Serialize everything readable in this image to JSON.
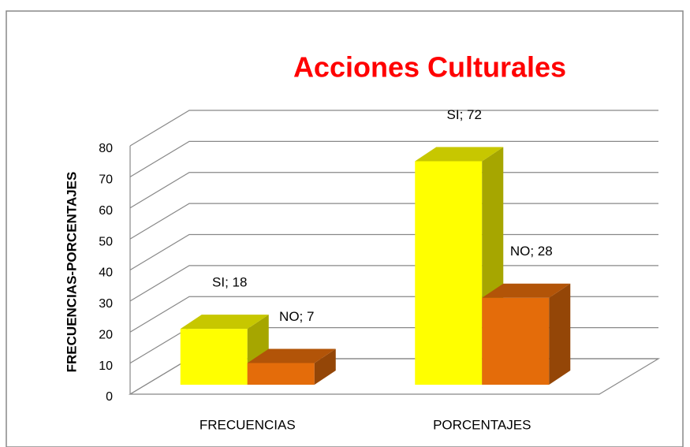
{
  "chart_data": {
    "type": "bar3d",
    "title": "Acciones Culturales",
    "ylabel": "FRECUENCIAS-PORCENTAJES",
    "categories": [
      "FRECUENCIAS",
      "PORCENTAJES"
    ],
    "series": [
      {
        "name": "SI",
        "color": "#ffff00",
        "values": [
          18,
          72
        ],
        "value_labels": [
          "SI; 18",
          "SI; 72"
        ]
      },
      {
        "name": "NO",
        "color": "#e46c0a",
        "values": [
          7,
          28
        ],
        "value_labels": [
          "NO; 7",
          "NO; 28"
        ]
      }
    ],
    "ylim": [
      0,
      80
    ],
    "yticks": [
      0,
      10,
      20,
      30,
      40,
      50,
      60,
      70,
      80
    ],
    "grid": true
  }
}
